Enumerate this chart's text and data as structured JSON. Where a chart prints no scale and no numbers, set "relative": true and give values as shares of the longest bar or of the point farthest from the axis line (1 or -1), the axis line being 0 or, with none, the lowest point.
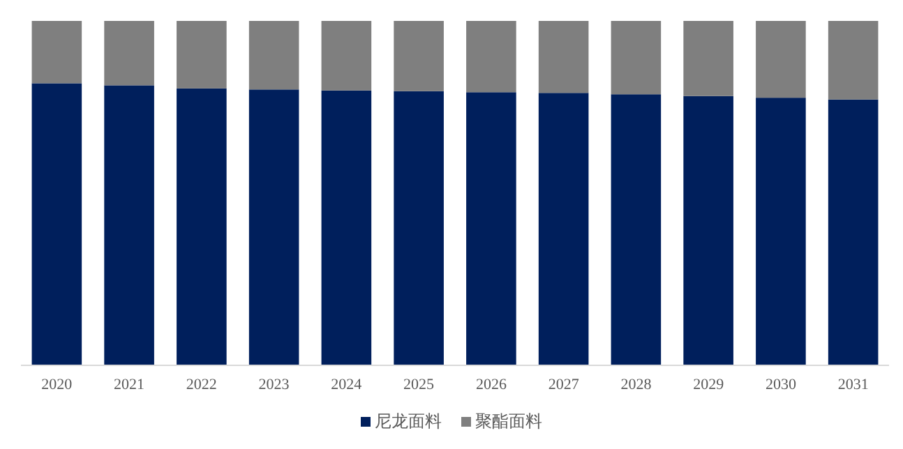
{
  "chart_data": {
    "type": "bar",
    "stacked": true,
    "relative": true,
    "legend": "bottom",
    "categories": [
      "2020",
      "2021",
      "2022",
      "2023",
      "2024",
      "2025",
      "2026",
      "2027",
      "2028",
      "2029",
      "2030",
      "2031"
    ],
    "series": [
      {
        "name": "尼龙面料",
        "color": "#001f5c",
        "values": [
          0.819,
          0.813,
          0.804,
          0.801,
          0.798,
          0.796,
          0.793,
          0.791,
          0.787,
          0.782,
          0.777,
          0.772
        ]
      },
      {
        "name": "聚酯面料",
        "color": "#7f7f7f",
        "values": [
          0.181,
          0.187,
          0.196,
          0.199,
          0.202,
          0.204,
          0.207,
          0.209,
          0.213,
          0.218,
          0.223,
          0.228
        ]
      }
    ]
  }
}
